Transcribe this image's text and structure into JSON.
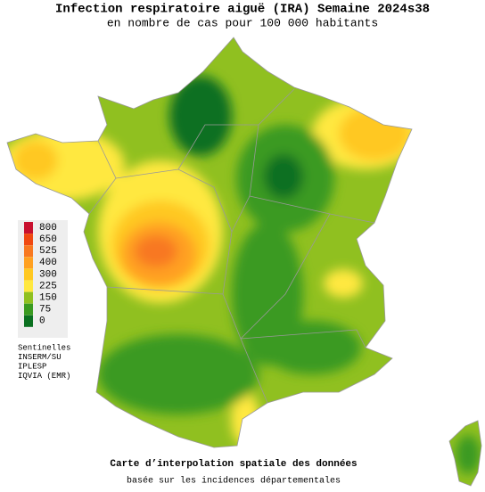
{
  "header": {
    "title": "Infection respiratoire aiguë (IRA) Semaine 2024s38",
    "subtitle": "en nombre de cas pour 100 000 habitants"
  },
  "legend": {
    "items": [
      {
        "label": "800",
        "color": "#c8102e"
      },
      {
        "label": "650",
        "color": "#f04810"
      },
      {
        "label": "525",
        "color": "#f87820"
      },
      {
        "label": "400",
        "color": "#ffa020"
      },
      {
        "label": "300",
        "color": "#ffc820"
      },
      {
        "label": "225",
        "color": "#ffe840"
      },
      {
        "label": "150",
        "color": "#90c020"
      },
      {
        "label": "75",
        "color": "#3a9a20"
      },
      {
        "label": "0",
        "color": "#0a7020"
      }
    ]
  },
  "sources": [
    "Sentinelles",
    "INSERM/SU",
    "IPLESP",
    "IQVIA (EMR)"
  ],
  "footer": {
    "caption": "Carte d’interpolation spatiale des données",
    "subcaption": "basée sur les incidences départementales"
  }
}
